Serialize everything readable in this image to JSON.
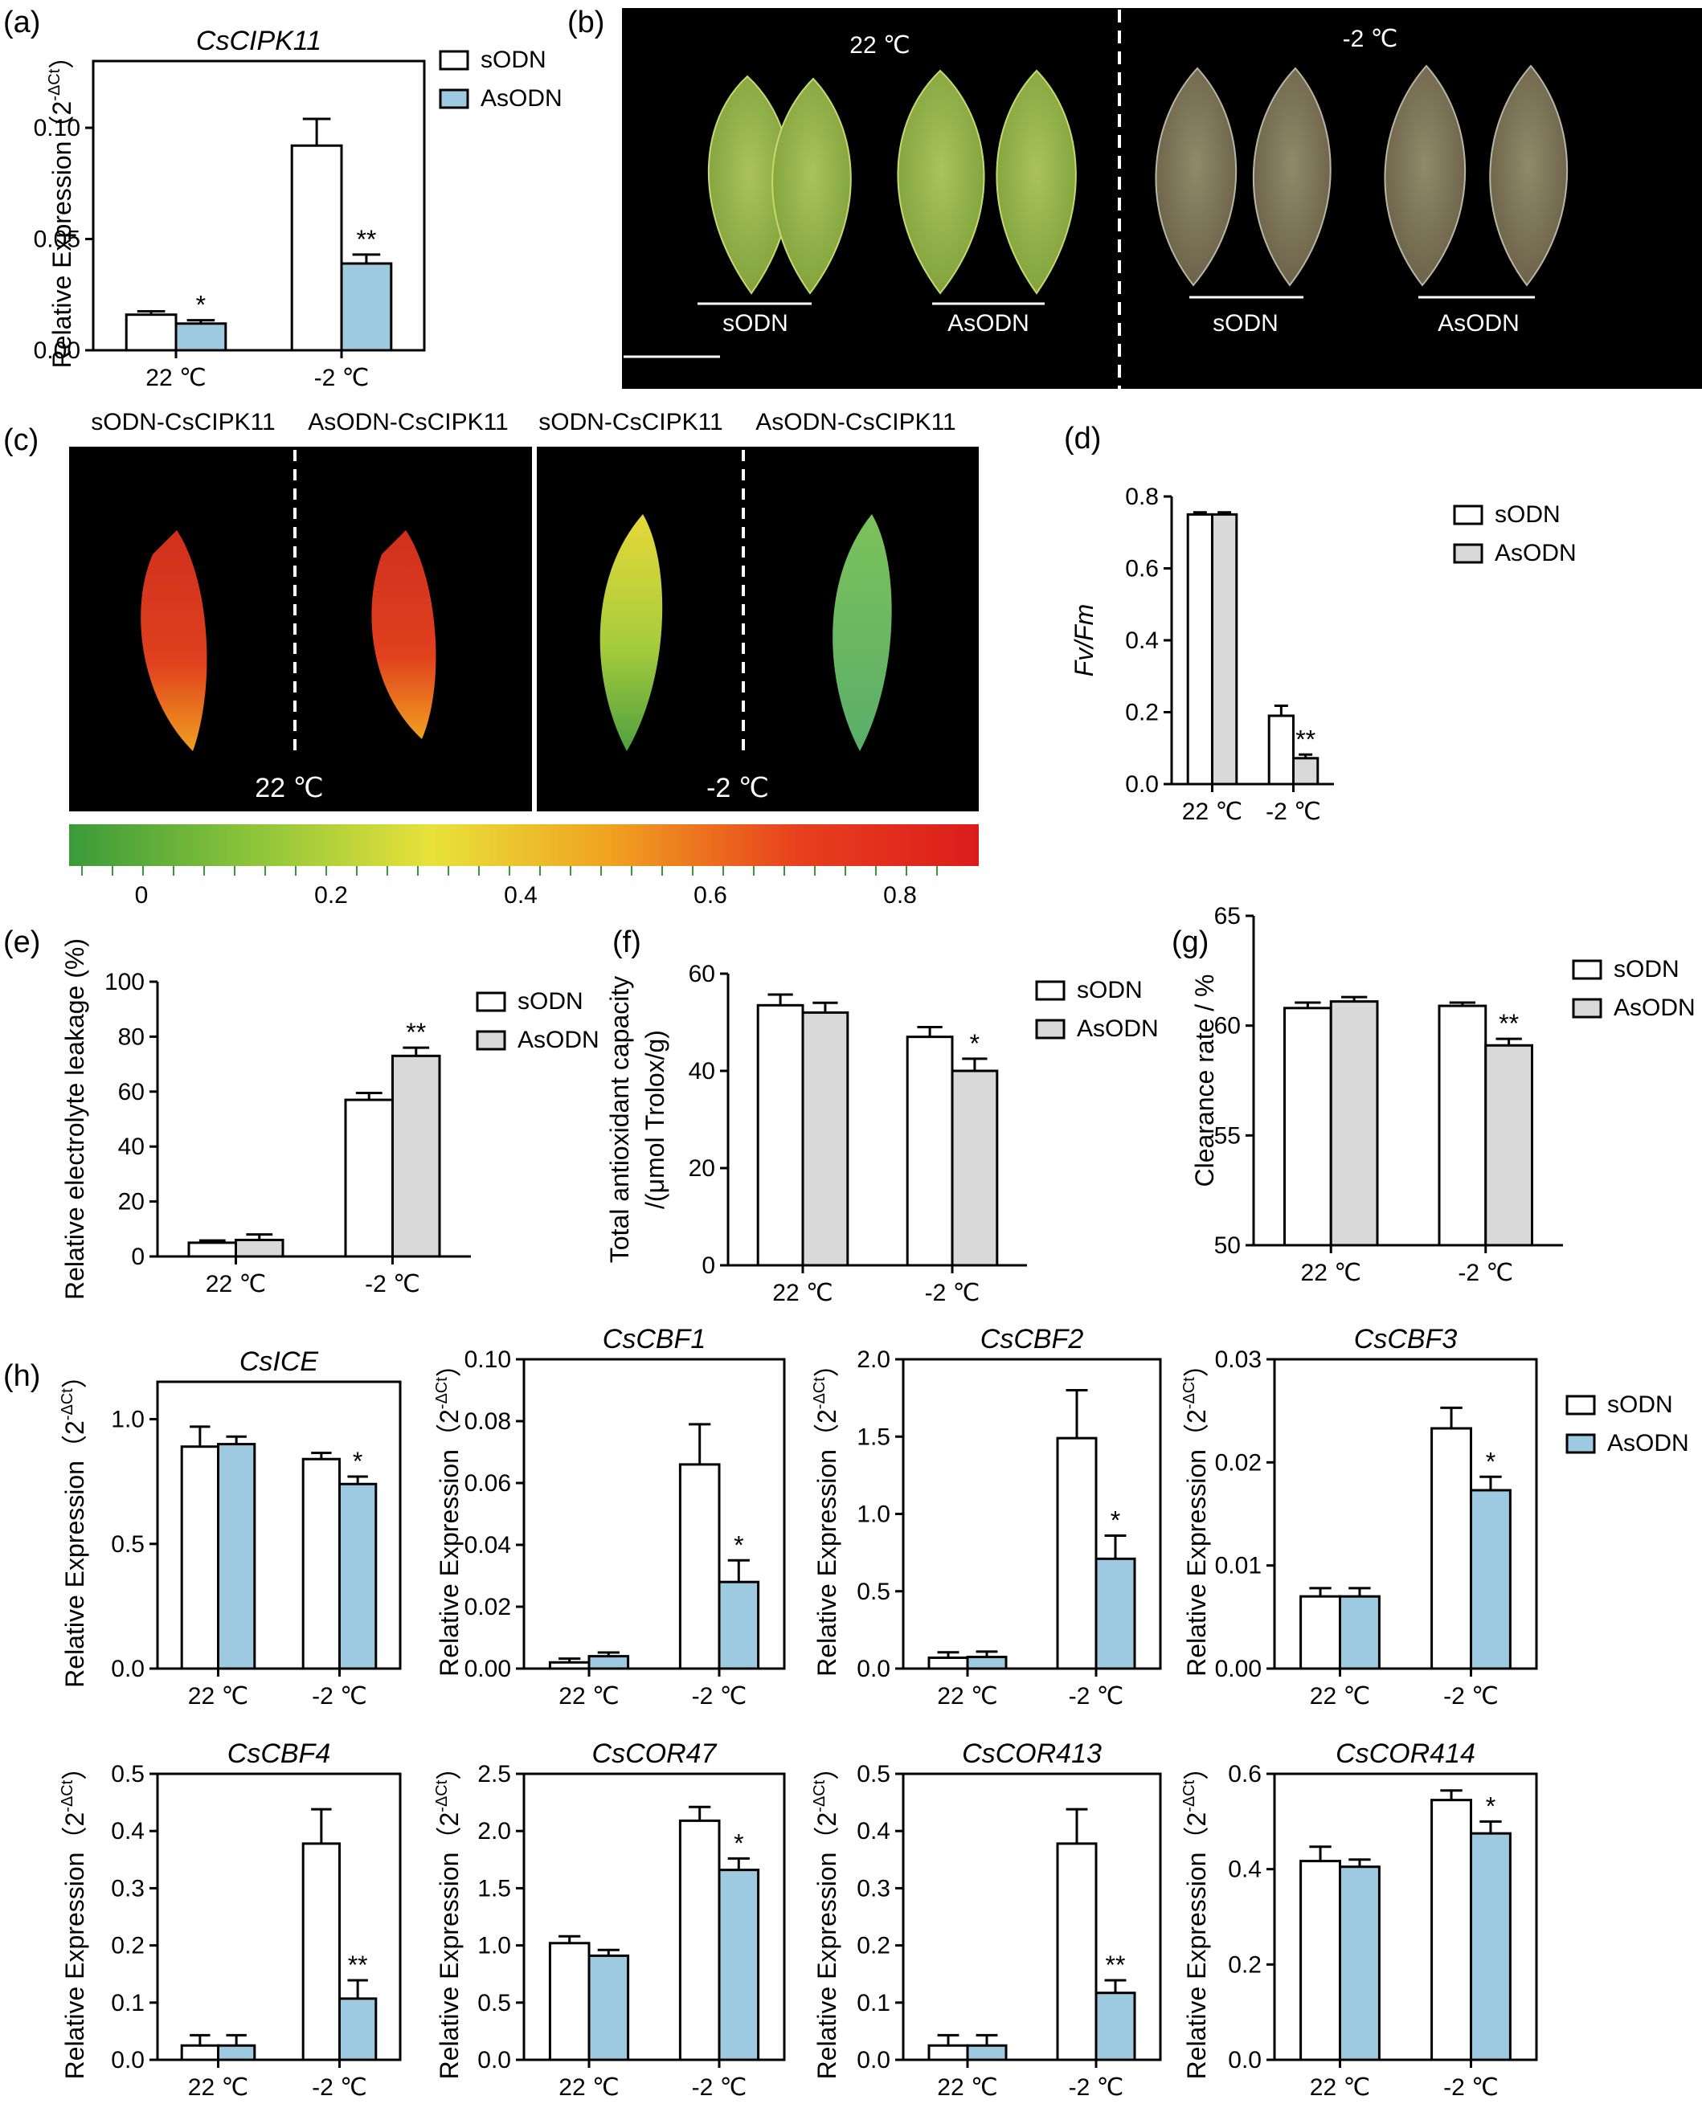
{
  "panels": {
    "b": {
      "label": "(b)",
      "left_temp": "22 ℃",
      "right_temp": "-2 ℃",
      "groups": [
        "sODN",
        "AsODN",
        "sODN",
        "AsODN"
      ]
    },
    "c": {
      "label": "(c)",
      "headers": [
        "sODN-CsCIPK11",
        "AsODN-CsCIPK11",
        "sODN-CsCIPK11",
        "AsODN-CsCIPK11"
      ],
      "left_temp": "22 ℃",
      "right_temp": "-2 ℃",
      "colorbar_ticks": [
        "0",
        "0.2",
        "0.4",
        "0.6",
        "0.8"
      ],
      "colorbar_colors": [
        "#3a9a3a",
        "#8cc43a",
        "#e8e23a",
        "#f0a020",
        "#e8401e",
        "#dc1c1c"
      ]
    }
  },
  "chart_data": [
    {
      "id": "a",
      "label": "(a)",
      "type": "bar",
      "title": "CsCIPK11",
      "ylabel": "Relative Expression（2",
      "ylabel_sup": "-ΔCt",
      "ylabel_end": "）",
      "categories": [
        "22 ℃",
        "-2 ℃"
      ],
      "ylim": [
        0,
        0.13
      ],
      "yticks": [
        "0.00",
        "0.05",
        "0.10"
      ],
      "ytick_values": [
        0,
        0.05,
        0.1
      ],
      "series": [
        {
          "name": "sODN",
          "color": "#ffffff",
          "values": [
            0.016,
            0.092
          ],
          "errors": [
            0.0015,
            0.012
          ]
        },
        {
          "name": "AsODN",
          "color": "#9ecae1",
          "values": [
            0.012,
            0.039
          ],
          "errors": [
            0.0015,
            0.004
          ]
        }
      ],
      "significance": [
        "*",
        "**"
      ],
      "box": true,
      "legend": "outside-right"
    },
    {
      "id": "d",
      "label": "(d)",
      "type": "bar",
      "title": "",
      "ylabel": "Fv/Fm",
      "ylabel_italic": true,
      "categories": [
        "22 ℃",
        "-2 ℃"
      ],
      "ylim": [
        0,
        0.8
      ],
      "yticks": [
        "0.0",
        "0.2",
        "0.4",
        "0.6",
        "0.8"
      ],
      "ytick_values": [
        0,
        0.2,
        0.4,
        0.6,
        0.8
      ],
      "series": [
        {
          "name": "sODN",
          "color": "#ffffff",
          "values": [
            0.75,
            0.19
          ],
          "errors": [
            0.006,
            0.028
          ]
        },
        {
          "name": "AsODN",
          "color": "#d9d9d9",
          "values": [
            0.75,
            0.072
          ],
          "errors": [
            0.006,
            0.01
          ]
        }
      ],
      "significance": [
        "",
        "**"
      ],
      "box": false,
      "legend": "top-right"
    },
    {
      "id": "e",
      "label": "(e)",
      "type": "bar",
      "title": "",
      "ylabel": "Relative electrolyte leakage (%)",
      "categories": [
        "22 ℃",
        "-2 ℃"
      ],
      "ylim": [
        0,
        100
      ],
      "yticks": [
        "0",
        "20",
        "40",
        "60",
        "80",
        "100"
      ],
      "ytick_values": [
        0,
        20,
        40,
        60,
        80,
        100
      ],
      "series": [
        {
          "name": "sODN",
          "color": "#ffffff",
          "values": [
            5,
            57
          ],
          "errors": [
            0.8,
            2.5
          ]
        },
        {
          "name": "AsODN",
          "color": "#d9d9d9",
          "values": [
            6,
            73
          ],
          "errors": [
            2,
            3
          ]
        }
      ],
      "significance": [
        "",
        "**"
      ],
      "box": false,
      "legend": "top-right"
    },
    {
      "id": "f",
      "label": "(f)",
      "type": "bar",
      "title": "",
      "ylabel": "Total antioxidant capacity",
      "ylabel2": "/(μmol Trolox/g)",
      "categories": [
        "22 ℃",
        "-2 ℃"
      ],
      "ylim": [
        0,
        60
      ],
      "yticks": [
        "0",
        "20",
        "40",
        "60"
      ],
      "ytick_values": [
        0,
        20,
        40,
        60
      ],
      "series": [
        {
          "name": "sODN",
          "color": "#ffffff",
          "values": [
            53.5,
            47
          ],
          "errors": [
            2.2,
            2
          ]
        },
        {
          "name": "AsODN",
          "color": "#d9d9d9",
          "values": [
            52,
            40
          ],
          "errors": [
            2,
            2.5
          ]
        }
      ],
      "significance": [
        "",
        "*"
      ],
      "box": false,
      "legend": "top-right"
    },
    {
      "id": "g",
      "label": "(g)",
      "type": "bar",
      "title": "",
      "ylabel": "Clearance rate / %",
      "categories": [
        "22 ℃",
        "-2 ℃"
      ],
      "ylim": [
        50,
        65
      ],
      "yticks": [
        "50",
        "55",
        "60",
        "65"
      ],
      "ytick_values": [
        50,
        55,
        60,
        65
      ],
      "series": [
        {
          "name": "sODN",
          "color": "#ffffff",
          "values": [
            60.8,
            60.9
          ],
          "errors": [
            0.25,
            0.15
          ]
        },
        {
          "name": "AsODN",
          "color": "#d9d9d9",
          "values": [
            61.1,
            59.1
          ],
          "errors": [
            0.2,
            0.3
          ]
        }
      ],
      "significance": [
        "",
        "**"
      ],
      "box": false,
      "legend": "top-right"
    },
    {
      "id": "h1",
      "label": "(h)",
      "type": "bar",
      "title": "CsICE",
      "ylabel": "Relative Expression（2",
      "ylabel_sup": "-ΔCt",
      "ylabel_end": "）",
      "categories": [
        "22 ℃",
        "-2 ℃"
      ],
      "ylim": [
        0,
        1.15
      ],
      "yticks": [
        "0.0",
        "0.5",
        "1.0"
      ],
      "ytick_values": [
        0,
        0.5,
        1.0
      ],
      "series": [
        {
          "name": "sODN",
          "color": "#ffffff",
          "values": [
            0.89,
            0.84
          ],
          "errors": [
            0.08,
            0.025
          ]
        },
        {
          "name": "AsODN",
          "color": "#9ecae1",
          "values": [
            0.9,
            0.74
          ],
          "errors": [
            0.03,
            0.03
          ]
        }
      ],
      "significance": [
        "",
        "*"
      ],
      "box": true,
      "legend": "none"
    },
    {
      "id": "h2",
      "label": "",
      "type": "bar",
      "title": "CsCBF1",
      "ylabel": "Relative Expression（2",
      "ylabel_sup": "-ΔCt",
      "ylabel_end": "）",
      "categories": [
        "22 ℃",
        "-2 ℃"
      ],
      "ylim": [
        0,
        0.1
      ],
      "yticks": [
        "0.00",
        "0.02",
        "0.04",
        "0.06",
        "0.08",
        "0.10"
      ],
      "ytick_values": [
        0,
        0.02,
        0.04,
        0.06,
        0.08,
        0.1
      ],
      "series": [
        {
          "name": "sODN",
          "color": "#ffffff",
          "values": [
            0.002,
            0.066
          ],
          "errors": [
            0.0012,
            0.013
          ]
        },
        {
          "name": "AsODN",
          "color": "#9ecae1",
          "values": [
            0.004,
            0.028
          ],
          "errors": [
            0.0012,
            0.007
          ]
        }
      ],
      "significance": [
        "",
        "*"
      ],
      "box": true,
      "legend": "none"
    },
    {
      "id": "h3",
      "label": "",
      "type": "bar",
      "title": "CsCBF2",
      "ylabel": "Relative Expression（2",
      "ylabel_sup": "-ΔCt",
      "ylabel_end": "）",
      "categories": [
        "22 ℃",
        "-2 ℃"
      ],
      "ylim": [
        0,
        2.0
      ],
      "yticks": [
        "0.0",
        "0.5",
        "1.0",
        "1.5",
        "2.0"
      ],
      "ytick_values": [
        0,
        0.5,
        1.0,
        1.5,
        2.0
      ],
      "series": [
        {
          "name": "sODN",
          "color": "#ffffff",
          "values": [
            0.07,
            1.49
          ],
          "errors": [
            0.035,
            0.31
          ]
        },
        {
          "name": "AsODN",
          "color": "#9ecae1",
          "values": [
            0.075,
            0.71
          ],
          "errors": [
            0.035,
            0.15
          ]
        }
      ],
      "significance": [
        "",
        "*"
      ],
      "box": true,
      "legend": "none"
    },
    {
      "id": "h4",
      "label": "",
      "type": "bar",
      "title": "CsCBF3",
      "ylabel": "Relative Expression（2",
      "ylabel_sup": "-ΔCt",
      "ylabel_end": "）",
      "categories": [
        "22 ℃",
        "-2 ℃"
      ],
      "ylim": [
        0,
        0.03
      ],
      "yticks": [
        "0.00",
        "0.01",
        "0.02",
        "0.03"
      ],
      "ytick_values": [
        0,
        0.01,
        0.02,
        0.03
      ],
      "series": [
        {
          "name": "sODN",
          "color": "#ffffff",
          "values": [
            0.007,
            0.0233
          ],
          "errors": [
            0.0008,
            0.002
          ]
        },
        {
          "name": "AsODN",
          "color": "#9ecae1",
          "values": [
            0.007,
            0.0173
          ],
          "errors": [
            0.0008,
            0.0013
          ]
        }
      ],
      "significance": [
        "",
        "*"
      ],
      "box": true,
      "legend": "outside-right"
    },
    {
      "id": "h5",
      "label": "",
      "type": "bar",
      "title": "CsCBF4",
      "ylabel": "Relative Expression（2",
      "ylabel_sup": "-ΔCt",
      "ylabel_end": "）",
      "categories": [
        "22 ℃",
        "-2 ℃"
      ],
      "ylim": [
        0,
        0.5
      ],
      "yticks": [
        "0.0",
        "0.1",
        "0.2",
        "0.3",
        "0.4",
        "0.5"
      ],
      "ytick_values": [
        0,
        0.1,
        0.2,
        0.3,
        0.4,
        0.5
      ],
      "series": [
        {
          "name": "sODN",
          "color": "#ffffff",
          "values": [
            0.025,
            0.378
          ],
          "errors": [
            0.018,
            0.06
          ]
        },
        {
          "name": "AsODN",
          "color": "#9ecae1",
          "values": [
            0.025,
            0.107
          ],
          "errors": [
            0.018,
            0.032
          ]
        }
      ],
      "significance": [
        "",
        "**"
      ],
      "box": true,
      "legend": "none"
    },
    {
      "id": "h6",
      "label": "",
      "type": "bar",
      "title": "CsCOR47",
      "ylabel": "Relative Expression（2",
      "ylabel_sup": "-ΔCt",
      "ylabel_end": "）",
      "categories": [
        "22 ℃",
        "-2 ℃"
      ],
      "ylim": [
        0,
        2.5
      ],
      "yticks": [
        "0.0",
        "0.5",
        "1.0",
        "1.5",
        "2.0",
        "2.5"
      ],
      "ytick_values": [
        0,
        0.5,
        1.0,
        1.5,
        2.0,
        2.5
      ],
      "series": [
        {
          "name": "sODN",
          "color": "#ffffff",
          "values": [
            1.02,
            2.09
          ],
          "errors": [
            0.06,
            0.12
          ]
        },
        {
          "name": "AsODN",
          "color": "#9ecae1",
          "values": [
            0.91,
            1.66
          ],
          "errors": [
            0.05,
            0.1
          ]
        }
      ],
      "significance": [
        "",
        "*"
      ],
      "box": true,
      "legend": "none"
    },
    {
      "id": "h7",
      "label": "",
      "type": "bar",
      "title": "CsCOR413",
      "ylabel": "Relative Expression（2",
      "ylabel_sup": "-ΔCt",
      "ylabel_end": "）",
      "categories": [
        "22 ℃",
        "-2 ℃"
      ],
      "ylim": [
        0,
        0.5
      ],
      "yticks": [
        "0.0",
        "0.1",
        "0.2",
        "0.3",
        "0.4",
        "0.5"
      ],
      "ytick_values": [
        0,
        0.1,
        0.2,
        0.3,
        0.4,
        0.5
      ],
      "series": [
        {
          "name": "sODN",
          "color": "#ffffff",
          "values": [
            0.025,
            0.378
          ],
          "errors": [
            0.018,
            0.06
          ]
        },
        {
          "name": "AsODN",
          "color": "#9ecae1",
          "values": [
            0.025,
            0.117
          ],
          "errors": [
            0.018,
            0.022
          ]
        }
      ],
      "significance": [
        "",
        "**"
      ],
      "box": true,
      "legend": "none"
    },
    {
      "id": "h8",
      "label": "",
      "type": "bar",
      "title": "CsCOR414",
      "ylabel": "Relative Expression（2",
      "ylabel_sup": "-ΔCt",
      "ylabel_end": "）",
      "categories": [
        "22 ℃",
        "-2 ℃"
      ],
      "ylim": [
        0,
        0.6
      ],
      "yticks": [
        "0.0",
        "0.2",
        "0.4",
        "0.6"
      ],
      "ytick_values": [
        0,
        0.2,
        0.4,
        0.6
      ],
      "series": [
        {
          "name": "sODN",
          "color": "#ffffff",
          "values": [
            0.417,
            0.545
          ],
          "errors": [
            0.03,
            0.02
          ]
        },
        {
          "name": "AsODN",
          "color": "#9ecae1",
          "values": [
            0.405,
            0.475
          ],
          "errors": [
            0.015,
            0.025
          ]
        }
      ],
      "significance": [
        "",
        "*"
      ],
      "box": true,
      "legend": "none"
    }
  ]
}
